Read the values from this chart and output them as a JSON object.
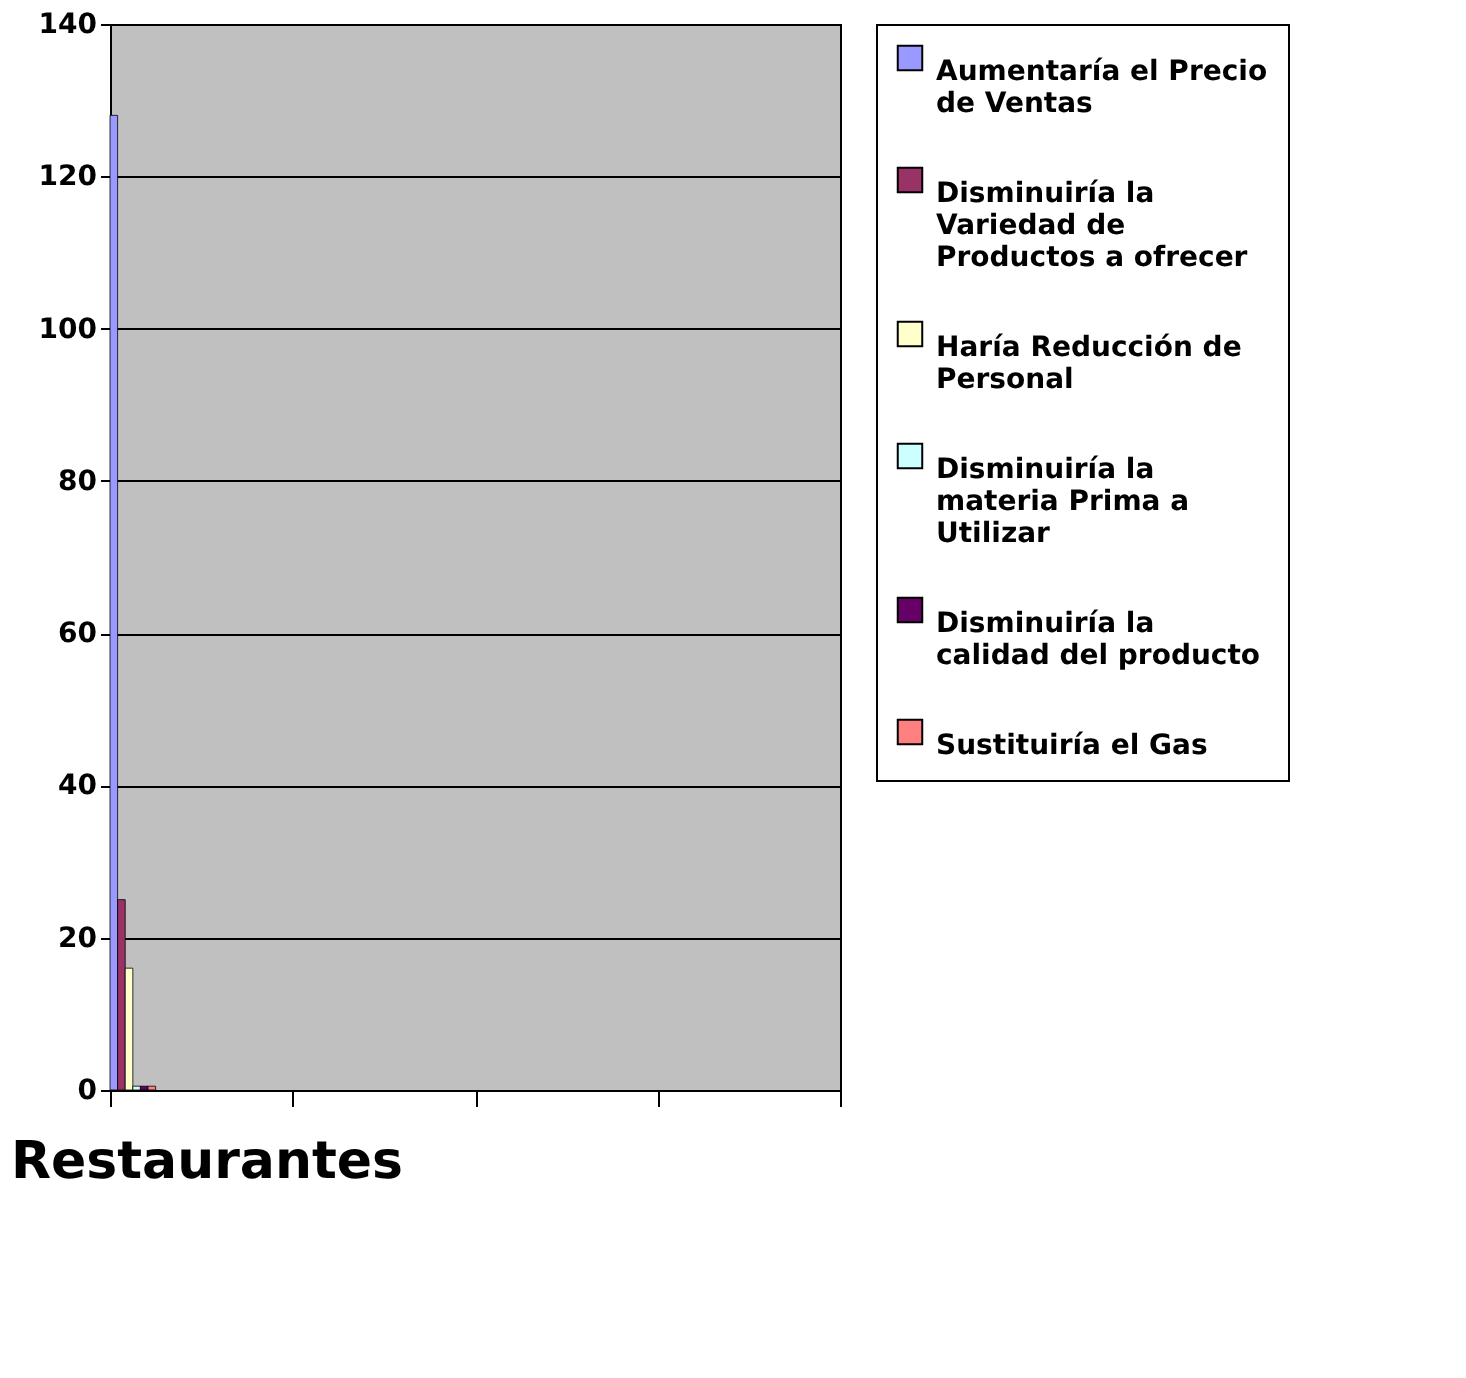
{
  "chart_data": {
    "type": "bar",
    "xlabel": "Restaurantes",
    "categories": [
      null,
      null,
      null,
      null
    ],
    "series": [
      {
        "name": "Aumentaría el Precio de Ventas",
        "color": "#9999ff",
        "values": [
          128,
          null,
          null,
          null
        ]
      },
      {
        "name": "Disminuiría la Variedad de Productos a ofrecer",
        "color": "#993366",
        "values": [
          25,
          null,
          null,
          null
        ]
      },
      {
        "name": "Haría Reducción de Personal",
        "color": "#ffffcc",
        "values": [
          16,
          null,
          null,
          null
        ]
      },
      {
        "name": "Disminuiría la materia Prima a Utilizar",
        "color": "#ccffff",
        "values": [
          0.5,
          null,
          null,
          null
        ]
      },
      {
        "name": "Disminuiría la calidad del producto",
        "color": "#660066",
        "values": [
          0.5,
          null,
          null,
          null
        ]
      },
      {
        "name": "Sustituiría el Gas",
        "color": "#ff8080",
        "values": [
          0.5,
          null,
          null,
          null
        ]
      }
    ],
    "ylim": [
      0,
      140
    ],
    "yticks": [
      0,
      20,
      40,
      60,
      80,
      100,
      120,
      140
    ],
    "grid": "y",
    "legend": "right",
    "tick_labels": "y"
  }
}
